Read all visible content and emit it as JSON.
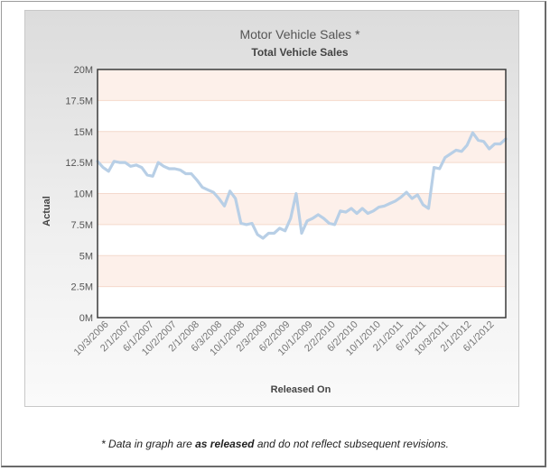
{
  "chart_data": {
    "type": "line",
    "title": "Motor Vehicle Sales *",
    "subtitle": "Total Vehicle Sales",
    "xlabel": "Released On",
    "ylabel": "Actual",
    "ylim": [
      0,
      20000000
    ],
    "grid": true,
    "y_ticks": [
      {
        "value": 0,
        "label": "0M"
      },
      {
        "value": 2500000,
        "label": "2.5M"
      },
      {
        "value": 5000000,
        "label": "5M"
      },
      {
        "value": 7500000,
        "label": "7.5M"
      },
      {
        "value": 10000000,
        "label": "10M"
      },
      {
        "value": 12500000,
        "label": "12.5M"
      },
      {
        "value": 15000000,
        "label": "15M"
      },
      {
        "value": 17500000,
        "label": "17.5M"
      },
      {
        "value": 20000000,
        "label": "20M"
      }
    ],
    "x_tick_labels": [
      "10/3/2006",
      "2/1/2007",
      "6/1/2007",
      "10/2/2007",
      "2/1/2008",
      "6/3/2008",
      "10/1/2008",
      "2/3/2009",
      "6/2/2009",
      "10/1/2009",
      "2/2/2010",
      "6/2/2010",
      "10/1/2010",
      "2/1/2011",
      "6/1/2011",
      "10/3/2011",
      "2/1/2012",
      "6/1/2012"
    ],
    "series": [
      {
        "name": "Actual",
        "color": "#b8cfe6",
        "values": [
          12.6,
          12.1,
          11.8,
          12.6,
          12.5,
          12.5,
          12.2,
          12.3,
          12.1,
          11.5,
          11.4,
          12.5,
          12.2,
          12.0,
          12.0,
          11.9,
          11.6,
          11.6,
          11.1,
          10.5,
          10.3,
          10.1,
          9.6,
          9.0,
          10.2,
          9.6,
          7.6,
          7.5,
          7.6,
          6.7,
          6.4,
          6.8,
          6.8,
          7.2,
          7.0,
          8.0,
          10.0,
          6.8,
          7.8,
          8.0,
          8.3,
          8.0,
          7.6,
          7.5,
          8.6,
          8.5,
          8.8,
          8.4,
          8.8,
          8.4,
          8.6,
          8.9,
          9.0,
          9.2,
          9.4,
          9.7,
          10.1,
          9.6,
          9.9,
          9.1,
          8.8,
          12.1,
          12.0,
          12.9,
          13.2,
          13.5,
          13.4,
          13.9,
          14.9,
          14.3,
          14.2,
          13.6,
          14.0,
          14.0,
          14.4
        ]
      }
    ]
  },
  "footnote": {
    "prefix": "* Data in graph are ",
    "emphasis": "as released",
    "suffix": " and do not reflect subsequent revisions."
  }
}
